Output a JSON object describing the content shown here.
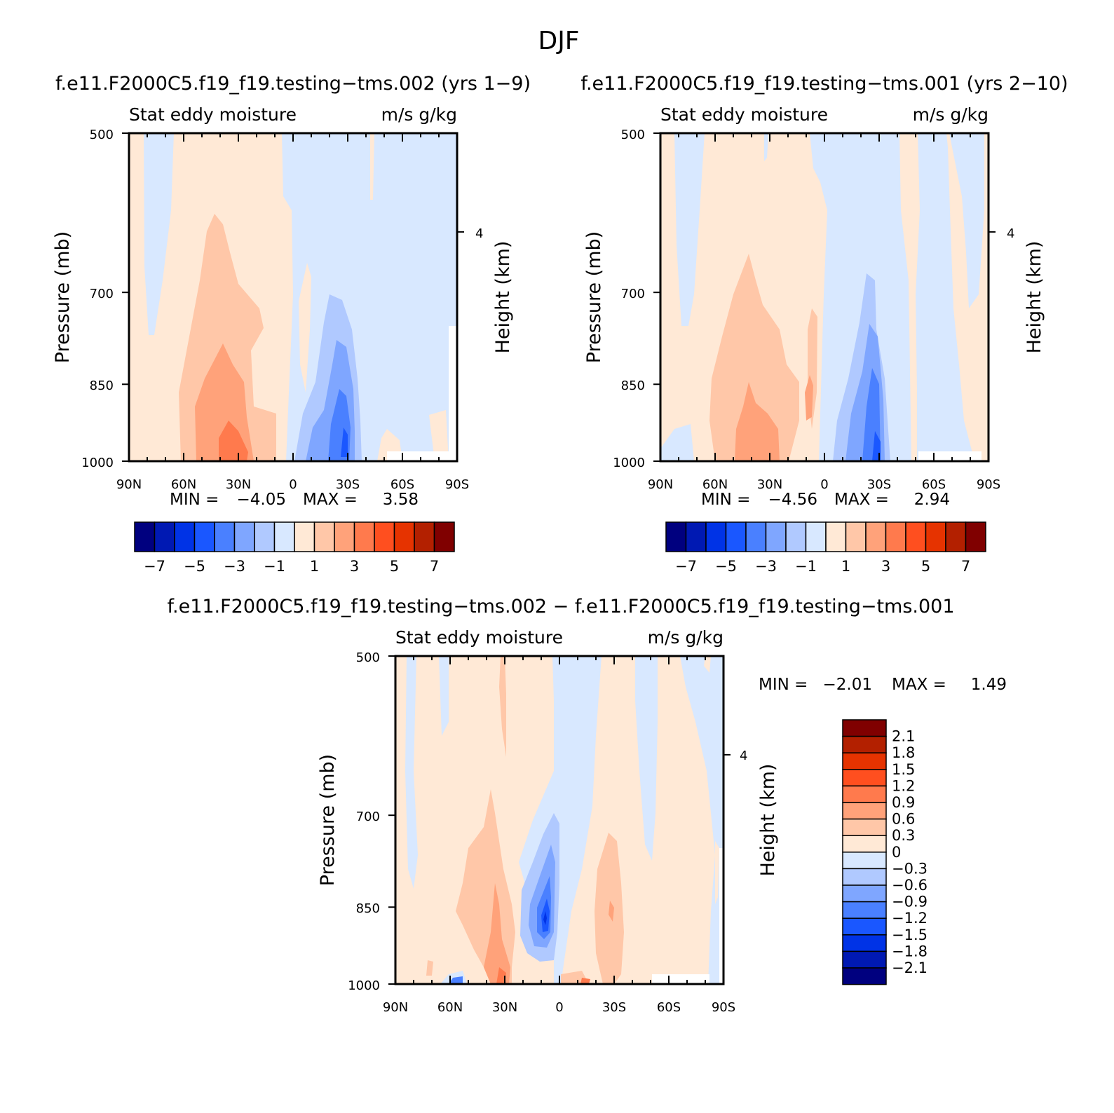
{
  "figure": {
    "title": "DJF",
    "panel_a_title": "f.e11.F2000C5.f19_f19.testing−tms.002 (yrs 1−9)",
    "panel_b_title": "f.e11.F2000C5.f19_f19.testing−tms.001 (yrs 2−10)",
    "panel_c_title": "f.e11.F2000C5.f19_f19.testing−tms.002 − f.e11.F2000C5.f19_f19.testing−tms.001"
  },
  "panels": [
    {
      "variable": "Stat eddy moisture",
      "units": "m/s g/kg",
      "ylabel": "Pressure (mb)",
      "ylabel_right": "Height (km)",
      "stats_min_label": "MIN =",
      "stats_min": "−4.05",
      "stats_max_label": "MAX =",
      "stats_max": "3.58"
    },
    {
      "variable": "Stat eddy moisture",
      "units": "m/s g/kg",
      "ylabel": "Pressure (mb)",
      "ylabel_right": "Height (km)",
      "stats_min_label": "MIN =",
      "stats_min": "−4.56",
      "stats_max_label": "MAX =",
      "stats_max": "2.94"
    },
    {
      "variable": "Stat eddy moisture",
      "units": "m/s g/kg",
      "ylabel": "Pressure (mb)",
      "ylabel_right": "Height (km)",
      "stats_min_label": "MIN =",
      "stats_min": "−2.01",
      "stats_max_label": "MAX =",
      "stats_max": "1.49"
    }
  ],
  "axes": {
    "x_ticks": [
      "90N",
      "60N",
      "30N",
      "0",
      "30S",
      "60S",
      "90S"
    ],
    "y_ticks": [
      "500",
      "700",
      "850",
      "1000"
    ],
    "y_right_ticks": [
      "4"
    ]
  },
  "colorbars": {
    "abs_labels": [
      "−7",
      "−5",
      "−3",
      "−1",
      "1",
      "3",
      "5",
      "7"
    ],
    "diff_labels": [
      "2.1",
      "1.8",
      "1.5",
      "1.2",
      "0.9",
      "0.6",
      "0.3",
      "0",
      "−0.3",
      "−0.6",
      "−0.9",
      "−1.2",
      "−1.5",
      "−1.8",
      "−2.1"
    ],
    "colors": [
      "#00007f",
      "#0019b3",
      "#0033e6",
      "#1a57ff",
      "#4a80ff",
      "#7fa6ff",
      "#b0c9ff",
      "#d8e8ff",
      "#ffe9d6",
      "#ffc7a8",
      "#ffa27a",
      "#ff7a4d",
      "#ff4f1f",
      "#e63300",
      "#b32000",
      "#800000"
    ]
  },
  "chart_data": [
    {
      "type": "heatmap",
      "title": "f.e11.F2000C5.f19_f19.testing−tms.002 (yrs 1−9)",
      "subtitle": "Stat eddy moisture  m/s g/kg",
      "xlabel": "",
      "ylabel": "Pressure (mb)",
      "xlim": [
        90,
        -90
      ],
      "ylim": [
        1000,
        500
      ],
      "min": -4.05,
      "max": 3.58,
      "levels": [
        -7,
        -6,
        -5,
        -4,
        -3,
        -2,
        -1,
        0,
        1,
        2,
        3,
        4,
        5,
        6,
        7
      ],
      "features": [
        {
          "name": "positive maximum",
          "lat": 35,
          "p": 1000,
          "value": 3.58
        },
        {
          "name": "negative minimum",
          "lat": -25,
          "p": 930,
          "value": -4.05
        }
      ]
    },
    {
      "type": "heatmap",
      "title": "f.e11.F2000C5.f19_f19.testing−tms.001 (yrs 2−10)",
      "subtitle": "Stat eddy moisture  m/s g/kg",
      "xlabel": "",
      "ylabel": "Pressure (mb)",
      "xlim": [
        90,
        -90
      ],
      "ylim": [
        1000,
        500
      ],
      "min": -4.56,
      "max": 2.94,
      "levels": [
        -7,
        -6,
        -5,
        -4,
        -3,
        -2,
        -1,
        0,
        1,
        2,
        3,
        4,
        5,
        6,
        7
      ],
      "features": [
        {
          "name": "positive maximum",
          "lat": 38,
          "p": 980,
          "value": 2.94
        },
        {
          "name": "negative minimum",
          "lat": -25,
          "p": 930,
          "value": -4.56
        }
      ]
    },
    {
      "type": "heatmap",
      "title": "f.e11.F2000C5.f19_f19.testing−tms.002 − f.e11.F2000C5.f19_f19.testing−tms.001",
      "subtitle": "Stat eddy moisture  m/s g/kg",
      "xlabel": "",
      "ylabel": "Pressure (mb)",
      "xlim": [
        90,
        -90
      ],
      "ylim": [
        1000,
        500
      ],
      "min": -2.01,
      "max": 1.49,
      "levels": [
        -2.1,
        -1.8,
        -1.5,
        -1.2,
        -0.9,
        -0.6,
        -0.3,
        0,
        0.3,
        0.6,
        0.9,
        1.2,
        1.5,
        1.8,
        2.1
      ],
      "features": [
        {
          "name": "negative minimum",
          "lat": 10,
          "p": 880,
          "value": -2.01
        },
        {
          "name": "positive maximum",
          "lat": 32,
          "p": 990,
          "value": 1.49
        }
      ]
    }
  ]
}
